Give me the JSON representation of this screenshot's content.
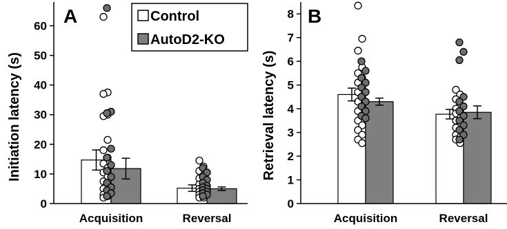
{
  "colors": {
    "control_fill": "#ffffff",
    "ko_fill": "#7f7f7f",
    "ko_points": "#6e6e6e",
    "axis": "#000000",
    "bar_edge": "#000000"
  },
  "legend": {
    "control_label": "Control",
    "ko_label": "AutoD2-KO"
  },
  "chart_data": [
    {
      "panel": "A",
      "type": "bar",
      "ylabel": "Initiation latency (s)",
      "xlabel": "",
      "ylim": [
        0,
        68
      ],
      "yticks": [
        0,
        10,
        20,
        30,
        40,
        50,
        60
      ],
      "categories": [
        "Acquisition",
        "Reversal"
      ],
      "legend": "top-right",
      "series": [
        {
          "name": "Control",
          "values": [
            14.7,
            5.2
          ],
          "errors": [
            3.4,
            1.1
          ],
          "points": [
            [
              63.0,
              37.5,
              37.0,
              30.0,
              29.5,
              21.5,
              18.0,
              15.5,
              13.5,
              12.0,
              10.5,
              9.0,
              7.5,
              6.0,
              5.0,
              4.0,
              3.0,
              2.5,
              2.0
            ],
            [
              14.5,
              12.5,
              11.0,
              9.5,
              8.5,
              7.5,
              6.5,
              5.5,
              5.0,
              4.5,
              4.0,
              3.5,
              3.0,
              2.5,
              2.0,
              2.0
            ]
          ]
        },
        {
          "name": "AutoD2-KO",
          "values": [
            11.8,
            5.0
          ],
          "errors": [
            3.5,
            0.6
          ],
          "points": [
            [
              66.0,
              31.0,
              30.5,
              18.5,
              15.5,
              13.0,
              11.0,
              9.0,
              7.0,
              5.5,
              4.5,
              3.5,
              2.5
            ],
            [
              12.0,
              10.5,
              9.0,
              8.0,
              7.0,
              6.0,
              5.5,
              5.0,
              4.5,
              4.0,
              3.5,
              3.0,
              2.5
            ]
          ]
        }
      ]
    },
    {
      "panel": "B",
      "type": "bar",
      "ylabel": "Retrieval latency (s)",
      "xlabel": "",
      "ylim": [
        0,
        8.5
      ],
      "yticks": [
        0,
        1,
        2,
        3,
        4,
        5,
        6,
        7,
        8
      ],
      "categories": [
        "Acquisition",
        "Reversal"
      ],
      "series": [
        {
          "name": "Control",
          "values": [
            4.6,
            3.77
          ],
          "errors": [
            0.27,
            0.2
          ],
          "points": [
            [
              8.35,
              6.95,
              6.45,
              5.75,
              5.5,
              5.3,
              5.1,
              4.9,
              4.7,
              4.5,
              4.3,
              4.1,
              3.9,
              3.7,
              3.5,
              3.3,
              3.1,
              2.9,
              2.7,
              2.55
            ],
            [
              4.8,
              4.6,
              4.4,
              4.2,
              4.0,
              3.9,
              3.8,
              3.6,
              3.5,
              3.4,
              3.2,
              3.0,
              2.9,
              2.8,
              2.7,
              2.55
            ]
          ]
        },
        {
          "name": "AutoD2-KO",
          "values": [
            4.3,
            3.85
          ],
          "errors": [
            0.15,
            0.27
          ],
          "points": [
            [
              6.0,
              5.6,
              5.3,
              5.1,
              4.9,
              4.7,
              4.5,
              4.3,
              4.1,
              3.9,
              3.7,
              3.6
            ],
            [
              6.8,
              6.4,
              6.05,
              4.5,
              4.3,
              4.1,
              3.9,
              3.7,
              3.5,
              3.3,
              3.1,
              2.9,
              2.7
            ]
          ]
        }
      ]
    }
  ]
}
